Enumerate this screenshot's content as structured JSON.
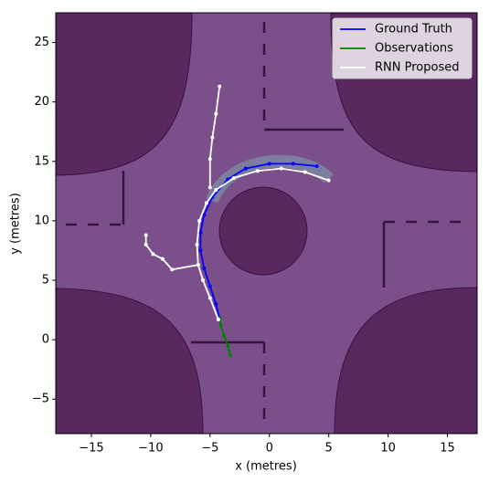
{
  "chart_data": {
    "type": "line",
    "xlabel": "x (metres)",
    "ylabel": "y (metres)",
    "xlim": [
      -18,
      17.5
    ],
    "ylim": [
      -7.9,
      27.5
    ],
    "xticks": [
      {
        "value": -15,
        "label": "−15"
      },
      {
        "value": -10,
        "label": "−10"
      },
      {
        "value": -5,
        "label": "−5"
      },
      0,
      5,
      10,
      15
    ],
    "yticks": [
      {
        "value": -5,
        "label": "−5"
      },
      0,
      5,
      10,
      15,
      20,
      25
    ],
    "grid": false,
    "legend": "upper right",
    "series": [
      {
        "name": "Ground Truth",
        "color": "#0000ff",
        "x": [
          -4.2,
          -4.5,
          -5.0,
          -5.5,
          -5.8,
          -5.8,
          -5.5,
          -4.8,
          -3.5,
          -2.0,
          0.0,
          2.0,
          4.0
        ],
        "values": [
          1.8,
          3.0,
          4.5,
          6.0,
          7.5,
          9.0,
          10.5,
          12.0,
          13.5,
          14.4,
          14.8,
          14.8,
          14.6
        ]
      },
      {
        "name": "Observations",
        "color": "#008000",
        "x": [
          -3.3,
          -3.5,
          -3.8,
          -4.1,
          -4.2
        ],
        "values": [
          -1.3,
          -0.5,
          0.3,
          1.2,
          1.8
        ]
      },
      {
        "name": "RNN Proposed",
        "color": "#ffffff",
        "x": [
          -10.4,
          -10.4,
          -9.8,
          -9.0,
          -8.2,
          -6.0,
          -5.6,
          -5.0,
          -4.3,
          null,
          -6.0,
          -6.1,
          -5.9,
          -5.3,
          -4.5,
          -3.0,
          -1.0,
          1.0,
          3.0,
          5.0,
          null,
          -5.0,
          -5.0,
          -4.8,
          -4.5,
          -4.2
        ],
        "values": [
          8.8,
          8.0,
          7.2,
          6.8,
          5.9,
          6.3,
          5.0,
          3.5,
          1.7,
          null,
          6.3,
          8.0,
          10.0,
          11.5,
          12.6,
          13.6,
          14.2,
          14.4,
          14.1,
          13.4,
          null,
          12.8,
          15.2,
          17.0,
          19.0,
          21.3
        ]
      }
    ]
  }
}
